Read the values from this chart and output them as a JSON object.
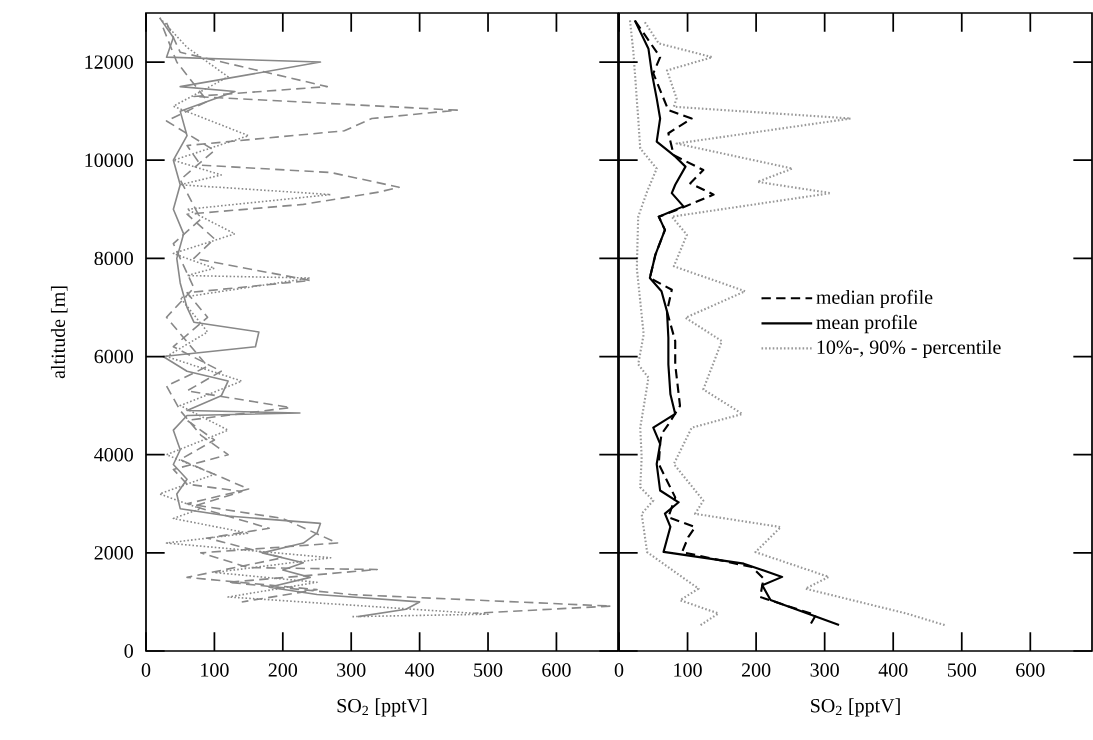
{
  "chart_data": [
    {
      "type": "line",
      "xlabel": "SO$_{2}$ [pptV]",
      "ylabel": "altitude [m]",
      "xlim": [
        0,
        690
      ],
      "ylim": [
        0,
        13000
      ],
      "xticks": [
        0,
        100,
        200,
        300,
        400,
        500,
        600
      ],
      "yticks": [
        0,
        2000,
        4000,
        6000,
        8000,
        10000,
        12000
      ],
      "series": [
        {
          "color": "#888888",
          "line_style": "solid",
          "x": [
            310,
            380,
            400,
            250,
            180,
            240,
            200,
            230,
            170,
            230,
            250,
            255,
            120,
            50,
            45,
            60,
            40,
            50,
            40,
            60,
            225,
            60,
            110,
            120,
            60,
            25,
            160,
            165,
            70,
            60,
            50,
            45,
            55,
            40,
            50,
            40,
            60,
            50,
            130,
            50,
            255,
            30,
            40,
            20
          ],
          "values": [
            700,
            850,
            1000,
            1150,
            1300,
            1500,
            1650,
            1800,
            2000,
            2200,
            2400,
            2600,
            2750,
            2900,
            3200,
            3500,
            3800,
            4100,
            4500,
            4800,
            4850,
            4900,
            5200,
            5500,
            5700,
            6000,
            6200,
            6500,
            6700,
            7000,
            7500,
            8000,
            8500,
            9000,
            9500,
            10000,
            10500,
            11000,
            11400,
            11500,
            12000,
            12100,
            12500,
            12900
          ]
        },
        {
          "color": "#888888",
          "line_style": "dashed",
          "x": [
            30,
            50,
            265,
            70,
            455,
            330,
            290,
            60,
            80,
            270,
            370,
            340,
            230,
            60,
            100,
            70,
            240,
            60,
            90,
            40,
            110,
            60,
            211,
            60,
            100,
            50,
            150,
            60,
            200,
            280,
            80,
            150,
            338,
            120,
            300,
            680,
            480
          ],
          "values": [
            12800,
            12200,
            11500,
            11300,
            11020,
            10850,
            10600,
            10300,
            9900,
            9750,
            9450,
            9350,
            9100,
            8900,
            8400,
            8000,
            7550,
            7300,
            6800,
            6200,
            5700,
            5300,
            4960,
            4700,
            4300,
            3900,
            3300,
            3000,
            2700,
            2200,
            2000,
            1700,
            1660,
            1400,
            1150,
            915,
            770
          ]
        },
        {
          "color": "#888888",
          "line_style": "dotted",
          "x": [
            20,
            60,
            120,
            40,
            150,
            40,
            110,
            50,
            270,
            60,
            130,
            40,
            100,
            60,
            240,
            50,
            90,
            30,
            140,
            50,
            120,
            30,
            100,
            20,
            80,
            40,
            150,
            30,
            270,
            100,
            250,
            120,
            500,
            300
          ],
          "values": [
            12900,
            12300,
            11700,
            11100,
            10500,
            10000,
            9700,
            9500,
            9300,
            9000,
            8500,
            8100,
            7800,
            7650,
            7600,
            7200,
            6500,
            6000,
            5500,
            5000,
            4500,
            4000,
            3600,
            3200,
            2900,
            2700,
            2400,
            2200,
            1900,
            1600,
            1400,
            1100,
            750,
            700
          ]
        },
        {
          "color": "#888888",
          "line_style": "dashed",
          "x": [
            25,
            45,
            90,
            30,
            100,
            50,
            80,
            40,
            70,
            30,
            60,
            90,
            30,
            50,
            80,
            120,
            40,
            60,
            140,
            70,
            180,
            90,
            200,
            60,
            250,
            140
          ],
          "values": [
            12700,
            12000,
            11200,
            10800,
            10200,
            9600,
            8800,
            8300,
            7400,
            6800,
            6300,
            5800,
            5400,
            4900,
            4400,
            4000,
            3700,
            3400,
            3250,
            2950,
            2500,
            2300,
            1900,
            1500,
            1250,
            1000
          ]
        }
      ]
    },
    {
      "type": "line",
      "xlabel": "SO$_{2}$ [pptV]",
      "xlim": [
        0,
        690
      ],
      "ylim": [
        0,
        13000
      ],
      "xticks": [
        0,
        100,
        200,
        300,
        400,
        500,
        600
      ],
      "yticks": [
        0,
        2000,
        4000,
        6000,
        8000,
        10000,
        12000
      ],
      "tick_labels": "x",
      "legend": "right",
      "series": [
        {
          "name": "median profile",
          "color": "#000000",
          "line_style": "dashed",
          "x": [
            280,
            287,
            206,
            209,
            211,
            194,
            92,
            101,
            111,
            72,
            82,
            58,
            60,
            62,
            72,
            89,
            82,
            82,
            70,
            77,
            45,
            53,
            67,
            58,
            85,
            138,
            104,
            123,
            80,
            72,
            106,
            72,
            50,
            60,
            23
          ],
          "values": [
            560,
            730,
            1100,
            1340,
            1475,
            1710,
            2015,
            2320,
            2525,
            2725,
            3130,
            3810,
            4215,
            4420,
            4620,
            4995,
            5840,
            6315,
            6920,
            7360,
            7600,
            8070,
            8580,
            8850,
            8990,
            9300,
            9530,
            9800,
            10100,
            10550,
            10850,
            11020,
            11770,
            12100,
            12850
          ]
        },
        {
          "name": "mean profile",
          "color": "#000000",
          "line_style": "solid",
          "x": [
            321,
            221,
            209,
            238,
            182,
            65,
            75,
            67,
            87,
            60,
            55,
            60,
            50,
            82,
            75,
            72,
            72,
            70,
            62,
            45,
            53,
            67,
            58,
            94,
            77,
            82,
            97,
            80,
            55,
            60,
            55,
            48,
            43,
            23
          ],
          "values": [
            530,
            1040,
            1340,
            1510,
            1780,
            2020,
            2530,
            2800,
            3030,
            3270,
            3810,
            4220,
            4550,
            4830,
            5230,
            5840,
            6380,
            6920,
            7330,
            7600,
            8070,
            8580,
            8850,
            9060,
            9330,
            9500,
            9870,
            10100,
            10380,
            10850,
            11260,
            11770,
            12270,
            12850
          ]
        },
        {
          "name": "10%-, 90% - percentile",
          "color": "#999999",
          "line_style": "dotted",
          "x": [
            119,
            145,
            89,
            116,
            41,
            33,
            50,
            31,
            33,
            31,
            43,
            28,
            36,
            26,
            28,
            41,
            55,
            31,
            28,
            21,
            16
          ],
          "values": [
            528,
            765,
            1035,
            1270,
            2015,
            2795,
            3065,
            3335,
            3945,
            4550,
            5570,
            5840,
            6450,
            7800,
            8850,
            9360,
            9830,
            10240,
            10850,
            12200,
            12850
          ]
        },
        {
          "color": "#999999",
          "line_style": "dotted",
          "x": [
            475,
            419,
            272,
            306,
            199,
            236,
            111,
            123,
            80,
            106,
            180,
            123,
            150,
            97,
            184,
            80,
            99,
            77,
            309,
            202,
            253,
            84,
            338,
            80,
            84,
            70,
            136,
            58,
            36
          ],
          "values": [
            528,
            765,
            1270,
            1510,
            2015,
            2525,
            2795,
            3065,
            3810,
            4550,
            4830,
            5330,
            6315,
            6790,
            7330,
            7840,
            8480,
            8850,
            9330,
            9560,
            9830,
            10340,
            10850,
            11090,
            11260,
            11830,
            12100,
            12380,
            12850
          ]
        }
      ]
    }
  ]
}
